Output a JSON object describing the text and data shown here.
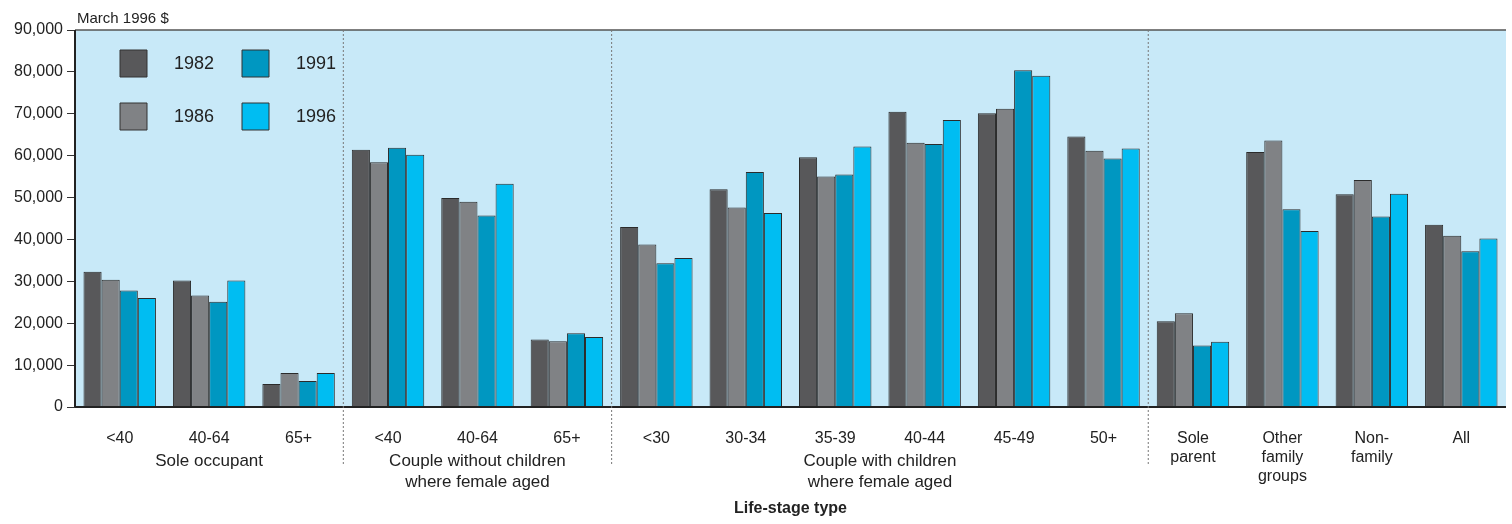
{
  "chart_data": {
    "type": "bar",
    "ylabel": "March 1996 $",
    "xlabel": "Life-stage type",
    "categories": [
      "<40",
      "40-64",
      "65+",
      "<40",
      "40-64",
      "65+",
      "<30",
      "30-34",
      "35-39",
      "40-44",
      "45-49",
      "50+",
      "Sole parent",
      "Other family groups",
      "Non-family",
      "All"
    ],
    "series": [
      {
        "name": "1982",
        "color": "#58585a",
        "values": [
          32300,
          30200,
          5500,
          61400,
          49900,
          16100,
          43000,
          52000,
          59600,
          70500,
          70100,
          64600,
          20500,
          60900,
          50800,
          43500
        ]
      },
      {
        "name": "1986",
        "color": "#808285",
        "values": [
          30400,
          26600,
          8100,
          58400,
          49000,
          15700,
          38800,
          47600,
          55000,
          63100,
          71200,
          61200,
          22400,
          63600,
          54200,
          40900
        ]
      },
      {
        "name": "1991",
        "color": "#0097c1",
        "values": [
          27800,
          25100,
          6200,
          61900,
          45700,
          17600,
          34300,
          56100,
          55500,
          62800,
          80400,
          59300,
          14700,
          47200,
          45500,
          37200
        ]
      },
      {
        "name": "1996",
        "color": "#00bdf2",
        "values": [
          26000,
          30200,
          8100,
          60200,
          53300,
          16700,
          35600,
          46300,
          62200,
          68500,
          79100,
          61700,
          15600,
          42000,
          50900,
          40200
        ]
      }
    ],
    "ylim": [
      0,
      90000
    ],
    "yticks": [
      0,
      {
        "value": 10000,
        "label": "10,000"
      },
      {
        "value": 20000,
        "label": "20,000"
      },
      {
        "value": 30000,
        "label": "30,000"
      },
      {
        "value": 40000,
        "label": "40,000"
      },
      {
        "value": 50000,
        "label": "50,000"
      },
      {
        "value": 60000,
        "label": "60,000"
      },
      {
        "value": 70000,
        "label": "70,000"
      },
      {
        "value": 80000,
        "label": "80,000"
      },
      {
        "value": 90000,
        "label": "90,000"
      }
    ],
    "annotations": [
      "Sole occupant",
      "Couple without children where female aged",
      "Couple with children where female aged"
    ],
    "legend": "top left"
  }
}
